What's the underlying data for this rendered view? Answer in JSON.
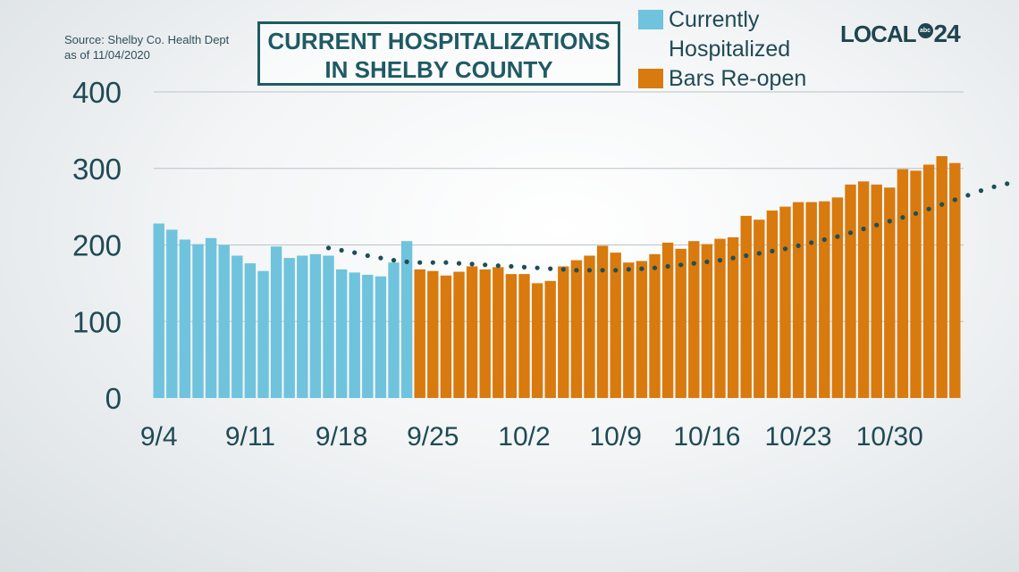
{
  "source": {
    "line1": "Source: Shelby Co. Health Dept",
    "line2": "as of 11/04/2020"
  },
  "logo": {
    "text": "LOCAL",
    "mark": "abc",
    "number": "24"
  },
  "colors": {
    "hospitalized": "#6fc3dd",
    "bars_reopen": "#d87a0e",
    "trend": "#1c4f57",
    "grid": "#b9c3c7",
    "axis_text": "#1f4a55"
  },
  "chart_data": {
    "type": "bar",
    "title": "CURRENT HOSPITALIZATIONS IN SHELBY COUNTY",
    "title_lines": [
      "CURRENT HOSPITALIZATIONS",
      "IN SHELBY COUNTY"
    ],
    "xlabel": "",
    "ylabel": "",
    "ylim": [
      0,
      400
    ],
    "yticks": [
      0,
      100,
      200,
      300,
      400
    ],
    "grid": true,
    "legend_position": "top-right",
    "x_tick_labels": [
      "9/4",
      "9/11",
      "9/18",
      "9/25",
      "10/2",
      "10/9",
      "10/16",
      "10/23",
      "10/30"
    ],
    "x_tick_every": 7,
    "series": [
      {
        "name": "Currently Hospitalized",
        "legend_label_lines": [
          "Currently",
          "Hospitalized"
        ],
        "color": "#6fc3dd",
        "start_index": 0,
        "values": [
          228,
          220,
          207,
          201,
          209,
          200,
          186,
          176,
          166,
          198,
          183,
          186,
          188,
          186,
          168,
          164,
          161,
          159,
          177,
          205
        ]
      },
      {
        "name": "Bars Re-open",
        "legend_label_lines": [
          "Bars Re-open"
        ],
        "color": "#d87a0e",
        "start_index": 20,
        "values": [
          168,
          166,
          160,
          165,
          172,
          168,
          171,
          162,
          162,
          150,
          153,
          172,
          180,
          186,
          199,
          190,
          177,
          179,
          188,
          203,
          195,
          205,
          201,
          208,
          210,
          238,
          233,
          245,
          250,
          256,
          256,
          257,
          262,
          279,
          283,
          279,
          275,
          299,
          297,
          305,
          316,
          307
        ]
      }
    ],
    "trend": {
      "type": "moving-average",
      "start_index": 13,
      "values": [
        196,
        193,
        190,
        186,
        183,
        180,
        178,
        177,
        177,
        177,
        176,
        175,
        174,
        173,
        172,
        171,
        170,
        169,
        168,
        167,
        167,
        167,
        167,
        168,
        169,
        170,
        172,
        174,
        176,
        178,
        180,
        183,
        186,
        189,
        192,
        195,
        199,
        203,
        207,
        211,
        216,
        221,
        226,
        231,
        236,
        241,
        247,
        253,
        259,
        265,
        271,
        276,
        280
      ]
    }
  }
}
